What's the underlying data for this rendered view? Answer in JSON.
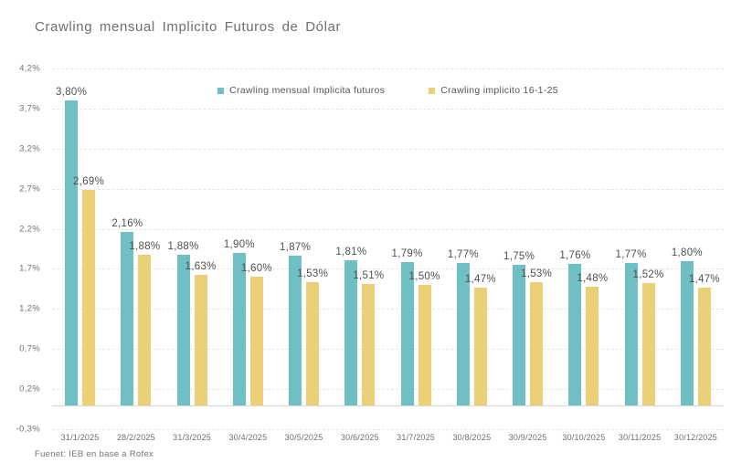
{
  "title": "Crawling mensual Implicito Futuros de Dólar",
  "footer": "Fuenet: IEB en base a Rofex",
  "colors": {
    "series1": "#6fc0c5",
    "series2": "#ebd078",
    "grid": "#e6e6e6",
    "zero_line": "#d8d8d8",
    "text": "#6e6e6e",
    "value_label": "#4f4f4f"
  },
  "chart_data": {
    "type": "bar",
    "title": "Crawling mensual Implicito Futuros de Dólar",
    "categories": [
      "31/1/2025",
      "28/2/2025",
      "31/3/2025",
      "30/4/2025",
      "30/5/2025",
      "30/6/2025",
      "31/7/2025",
      "30/8/2025",
      "30/9/2025",
      "30/10/2025",
      "30/11/2025",
      "30/12/2025"
    ],
    "series": [
      {
        "name": "Crawling mensual Implicita futuros",
        "color": "#6fc0c5",
        "values": [
          3.8,
          2.16,
          1.88,
          1.9,
          1.87,
          1.81,
          1.79,
          1.77,
          1.75,
          1.76,
          1.77,
          1.8
        ],
        "labels": [
          "3,80%",
          "2,16%",
          "1,88%",
          "1,90%",
          "1,87%",
          "1,81%",
          "1,79%",
          "1,77%",
          "1,75%",
          "1,76%",
          "1,77%",
          "1,80%"
        ]
      },
      {
        "name": "Crawling implicito 16-1-25",
        "color": "#ebd078",
        "values": [
          2.69,
          1.88,
          1.63,
          1.6,
          1.53,
          1.51,
          1.5,
          1.47,
          1.53,
          1.48,
          1.52,
          1.47
        ],
        "labels": [
          "2,69%",
          "1,88%",
          "1,63%",
          "1,60%",
          "1,53%",
          "1,51%",
          "1,50%",
          "1,47%",
          "1,53%",
          "1,48%",
          "1,52%",
          "1,47%"
        ]
      }
    ],
    "xlabel": "",
    "ylabel": "",
    "ylim": [
      -0.3,
      4.2
    ],
    "yticks": [
      {
        "value": 4.2,
        "label": "4,2%"
      },
      {
        "value": 3.7,
        "label": "3,7%"
      },
      {
        "value": 3.2,
        "label": "3,2%"
      },
      {
        "value": 2.7,
        "label": "2,7%"
      },
      {
        "value": 2.2,
        "label": "2,2%"
      },
      {
        "value": 1.7,
        "label": "1,7%"
      },
      {
        "value": 1.2,
        "label": "1,2%"
      },
      {
        "value": 0.7,
        "label": "0,7%"
      },
      {
        "value": 0.2,
        "label": "0,2%"
      },
      {
        "value": -0.3,
        "label": "-0,3%"
      }
    ],
    "grid": true,
    "legend_position": "top-center",
    "value_labels_shown": true
  }
}
